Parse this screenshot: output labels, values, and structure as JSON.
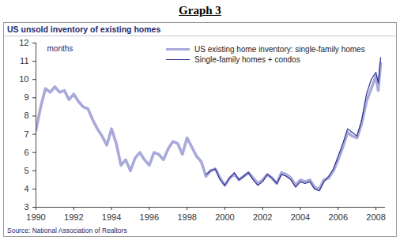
{
  "chart_data": {
    "type": "line",
    "title": "Graph 3",
    "subtitle": "US unsold inventory of existing homes",
    "y_label": "months",
    "source": "Source: National Association of Realtors",
    "xlim": [
      1990,
      2008.5
    ],
    "xticks": [
      1990,
      1992,
      1994,
      1996,
      1998,
      2000,
      2002,
      2004,
      2006,
      2008
    ],
    "ylim": [
      3,
      12
    ],
    "yticks": [
      3,
      4,
      5,
      6,
      7,
      8,
      9,
      10,
      11,
      12
    ],
    "grid": false,
    "legend": "top",
    "x": [
      1990,
      1990.25,
      1990.5,
      1990.75,
      1991,
      1991.25,
      1991.5,
      1991.75,
      1992,
      1992.25,
      1992.5,
      1992.75,
      1993,
      1993.25,
      1993.5,
      1993.75,
      1994,
      1994.25,
      1994.5,
      1994.75,
      1995,
      1995.25,
      1995.5,
      1995.75,
      1996,
      1996.25,
      1996.5,
      1996.75,
      1997,
      1997.25,
      1997.5,
      1997.75,
      1998,
      1998.25,
      1998.5,
      1998.75,
      1999,
      1999.25,
      1999.5,
      1999.75,
      2000,
      2000.25,
      2000.5,
      2000.75,
      2001,
      2001.25,
      2001.5,
      2001.75,
      2002,
      2002.25,
      2002.5,
      2002.75,
      2003,
      2003.25,
      2003.5,
      2003.75,
      2004,
      2004.25,
      2004.5,
      2004.75,
      2005,
      2005.25,
      2005.5,
      2005.75,
      2006,
      2006.25,
      2006.5,
      2006.75,
      2007,
      2007.25,
      2007.5,
      2007.75,
      2008,
      2008.125,
      2008.25
    ],
    "series": [
      {
        "name": "US existing home inventory: single-family homes",
        "color": "#a9a9da",
        "values": [
          7.2,
          8.5,
          9.5,
          9.3,
          9.6,
          9.3,
          9.4,
          8.9,
          9.2,
          8.8,
          8.5,
          8.4,
          7.8,
          7.3,
          6.9,
          6.4,
          7.3,
          6.5,
          5.3,
          5.6,
          5.0,
          5.7,
          6.0,
          5.6,
          5.3,
          6.0,
          5.9,
          5.6,
          6.2,
          6.6,
          6.5,
          5.9,
          6.8,
          6.3,
          5.8,
          5.5,
          4.7,
          5.0,
          5.1,
          4.6,
          4.2,
          4.6,
          4.8,
          4.5,
          4.7,
          4.9,
          4.6,
          4.3,
          4.5,
          4.8,
          4.6,
          4.3,
          4.9,
          4.8,
          4.6,
          4.2,
          4.5,
          4.4,
          4.5,
          4.1,
          4.0,
          4.5,
          4.6,
          5.0,
          5.6,
          6.3,
          7.1,
          6.9,
          6.8,
          7.6,
          8.8,
          9.5,
          10.2,
          9.4,
          10.9
        ]
      },
      {
        "name": "Single-family homes + condos",
        "color": "#2e3192",
        "values": [
          null,
          null,
          null,
          null,
          null,
          null,
          null,
          null,
          null,
          null,
          null,
          null,
          null,
          null,
          null,
          null,
          null,
          null,
          null,
          null,
          null,
          null,
          null,
          null,
          null,
          null,
          null,
          null,
          null,
          null,
          null,
          null,
          null,
          null,
          null,
          null,
          4.8,
          5.0,
          5.1,
          4.5,
          4.2,
          4.6,
          4.9,
          4.5,
          4.7,
          4.9,
          4.5,
          4.2,
          4.4,
          4.8,
          4.6,
          4.3,
          4.8,
          4.7,
          4.5,
          4.1,
          4.4,
          4.3,
          4.4,
          4.0,
          3.9,
          4.4,
          4.7,
          5.1,
          5.8,
          6.5,
          7.3,
          7.1,
          6.9,
          7.8,
          9.2,
          10.0,
          10.4,
          9.8,
          11.2
        ]
      }
    ]
  }
}
